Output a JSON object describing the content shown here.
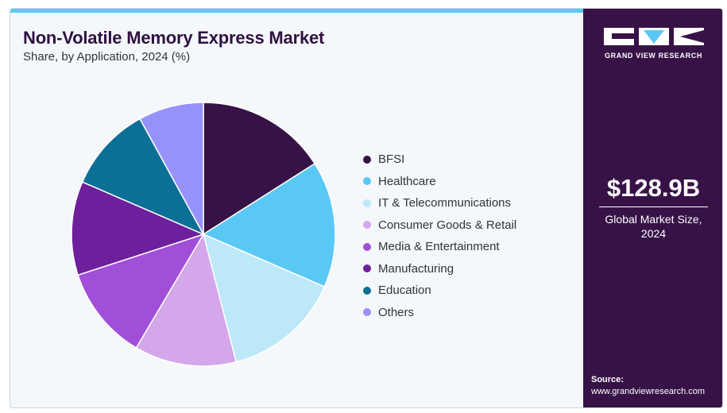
{
  "header": {
    "title": "Non-Volatile Memory Express Market",
    "subtitle": "Share, by Application, 2024 (%)"
  },
  "chart_data": {
    "type": "pie",
    "title": "Non-Volatile Memory Express Market",
    "subtitle": "Share, by Application, 2024 (%)",
    "legend_position": "right",
    "slices": [
      {
        "label": "BFSI",
        "value": 16.0,
        "color": "#371247"
      },
      {
        "label": "Healthcare",
        "value": 15.5,
        "color": "#5ac8f5"
      },
      {
        "label": "IT & Telecommunications",
        "value": 14.5,
        "color": "#bce8f8"
      },
      {
        "label": "Consumer Goods & Retail",
        "value": 12.5,
        "color": "#d4a6ea"
      },
      {
        "label": "Media & Entertainment",
        "value": 11.5,
        "color": "#a14fd9"
      },
      {
        "label": "Manufacturing",
        "value": 11.5,
        "color": "#6e1f9b"
      },
      {
        "label": "Education",
        "value": 10.5,
        "color": "#0c6f95"
      },
      {
        "label": "Others",
        "value": 8.0,
        "color": "#9792fb"
      }
    ]
  },
  "sidebar": {
    "brand": "GRAND VIEW RESEARCH",
    "market_value": "$128.9B",
    "market_label_line1": "Global Market Size,",
    "market_label_line2": "2024",
    "source_label": "Source:",
    "source_url": "www.grandviewresearch.com",
    "accent_color": "#5ac8f5",
    "background_color": "#371247"
  }
}
